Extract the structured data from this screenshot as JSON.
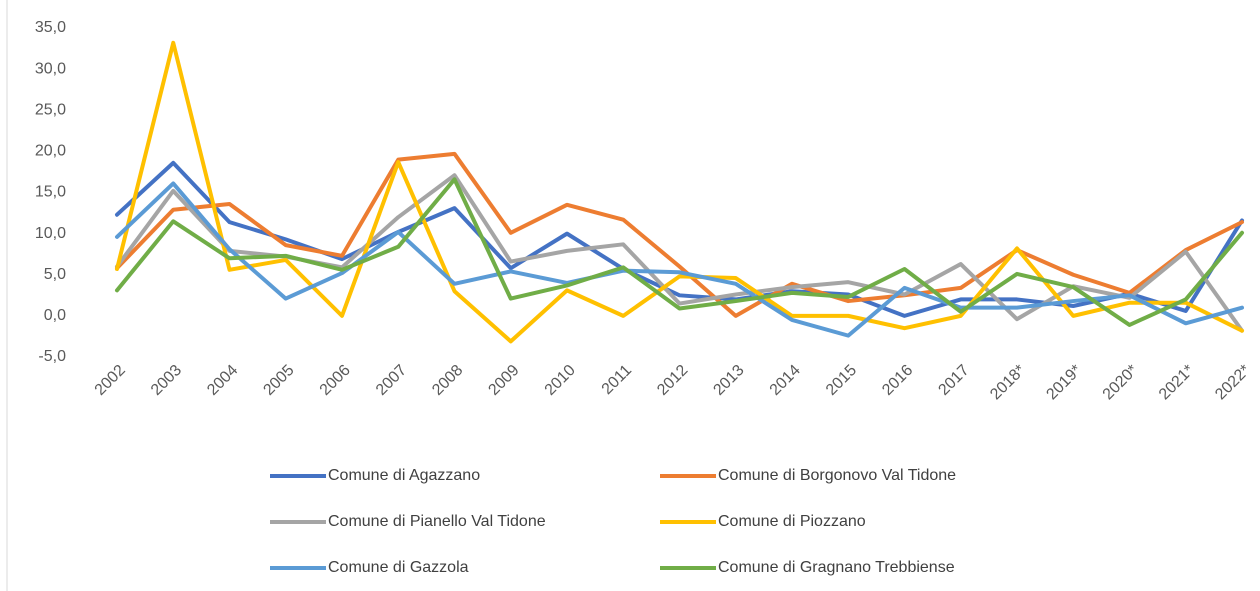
{
  "chart_data": {
    "type": "line",
    "categories": [
      "2002",
      "2003",
      "2004",
      "2005",
      "2006",
      "2007",
      "2008",
      "2009",
      "2010",
      "2011",
      "2012",
      "2013",
      "2014",
      "2015",
      "2016",
      "2017",
      "2018*",
      "2019*",
      "2020*",
      "2021*",
      "2022*"
    ],
    "series": [
      {
        "name": "Comune di Agazzano",
        "color": "#4472c4",
        "values": [
          12.3,
          18.6,
          11.4,
          9.3,
          6.9,
          10.2,
          13.1,
          5.8,
          10.0,
          5.7,
          2.5,
          2.0,
          3.0,
          2.6,
          0.0,
          2.0,
          2.0,
          1.2,
          2.7,
          0.6,
          11.6
        ]
      },
      {
        "name": "Comune di Borgonovo Val Tidone",
        "color": "#ed7d31",
        "values": [
          5.8,
          12.9,
          13.6,
          8.6,
          7.3,
          19.0,
          19.7,
          10.1,
          13.5,
          11.7,
          6.0,
          0.0,
          3.9,
          1.8,
          2.5,
          3.4,
          8.0,
          5.0,
          2.8,
          8.0,
          11.4
        ]
      },
      {
        "name": "Comune di Pianello Val Tidone",
        "color": "#a5a5a5",
        "values": [
          6.0,
          15.2,
          7.9,
          7.2,
          5.9,
          12.0,
          17.1,
          6.6,
          7.9,
          8.7,
          1.5,
          2.6,
          3.5,
          4.1,
          2.6,
          6.3,
          -0.4,
          3.6,
          2.2,
          7.8,
          -1.8
        ]
      },
      {
        "name": "Comune di Piozzano",
        "color": "#ffc000",
        "values": [
          5.7,
          33.2,
          5.6,
          6.8,
          0.0,
          18.7,
          3.0,
          -3.1,
          3.1,
          0.0,
          4.8,
          4.6,
          0.0,
          0.0,
          -1.5,
          0.0,
          8.2,
          0.0,
          1.6,
          1.6,
          -1.8
        ]
      },
      {
        "name": "Comune di Gazzola",
        "color": "#5b9bd5",
        "values": [
          9.6,
          16.1,
          8.1,
          2.1,
          5.2,
          10.2,
          3.9,
          5.4,
          4.0,
          5.5,
          5.3,
          3.9,
          -0.5,
          -2.4,
          3.4,
          1.0,
          1.0,
          1.8,
          2.5,
          -0.9,
          1.0
        ]
      },
      {
        "name": "Comune di Gragnano Trebbiense",
        "color": "#70ad47",
        "values": [
          3.1,
          11.5,
          7.0,
          7.3,
          5.6,
          8.4,
          16.6,
          2.1,
          3.7,
          5.9,
          0.9,
          1.8,
          2.8,
          2.3,
          5.7,
          0.5,
          5.1,
          3.5,
          -1.1,
          2.0,
          10.1
        ]
      }
    ],
    "ylim": [
      -5,
      35
    ],
    "yticks": [
      {
        "value": -5,
        "label": "-5,0"
      },
      {
        "value": 0,
        "label": "0,0"
      },
      {
        "value": 5,
        "label": "5,0"
      },
      {
        "value": 10,
        "label": "10,0"
      },
      {
        "value": 15,
        "label": "15,0"
      },
      {
        "value": 20,
        "label": "20,0"
      },
      {
        "value": 25,
        "label": "25,0"
      },
      {
        "value": 30,
        "label": "30,0"
      },
      {
        "value": 35,
        "label": "35,0"
      }
    ],
    "legend": "bottom"
  }
}
